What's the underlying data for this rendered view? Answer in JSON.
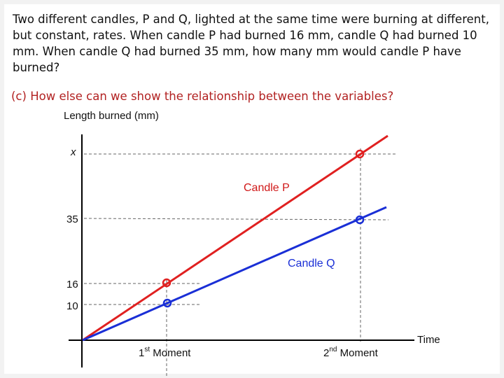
{
  "problem": {
    "text": "Two different candles, P and Q, lighted at the same time were burning at different, but constant, rates.  When candle P had burned 16 mm, candle Q had burned 10 mm. When candle Q had burned 35 mm, how many mm would candle P have burned?"
  },
  "question": {
    "label": "(c)",
    "text": "How else can we show the relationship between the variables?"
  },
  "graph": {
    "y_axis_title": "Length burned (mm)",
    "x_axis_title": "Time",
    "y_ticks": [
      "x",
      "35",
      "16",
      "10"
    ],
    "x_moments": [
      {
        "base": "1",
        "sup": "st",
        "rest": " Moment"
      },
      {
        "base": "2",
        "sup": "nd",
        "rest": " Moment"
      }
    ],
    "series": [
      {
        "name": "Candle P",
        "color": "#e02020",
        "points": [
          [
            0,
            0
          ],
          [
            1,
            16
          ],
          [
            2,
            "x"
          ]
        ]
      },
      {
        "name": "Candle Q",
        "color": "#1a2fd6",
        "points": [
          [
            0,
            0
          ],
          [
            1,
            10
          ],
          [
            2,
            35
          ]
        ]
      }
    ]
  }
}
